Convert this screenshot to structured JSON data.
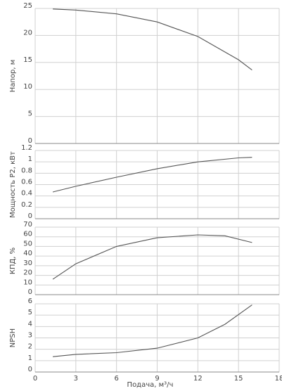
{
  "chart_data": [
    {
      "type": "line",
      "ylabel": "Напор, м",
      "x": [
        1.3,
        3,
        6,
        9,
        12,
        15,
        16
      ],
      "series": [
        {
          "color": "#555555",
          "values": [
            24.9,
            24.7,
            24.0,
            22.5,
            19.8,
            15.5,
            13.6
          ]
        }
      ],
      "xlim": [
        0,
        18
      ],
      "xticks": [
        0,
        3,
        6,
        9,
        12,
        15,
        18
      ],
      "ylim": [
        0,
        25
      ],
      "yticks": [
        0,
        5,
        10,
        15,
        20,
        25
      ],
      "grid": true
    },
    {
      "type": "line",
      "ylabel": "Мощность Р2, кВт",
      "x": [
        1.3,
        3,
        6,
        9,
        12,
        15,
        16
      ],
      "series": [
        {
          "color": "#555555",
          "values": [
            0.47,
            0.57,
            0.73,
            0.88,
            1.0,
            1.07,
            1.08
          ]
        }
      ],
      "xlim": [
        0,
        18
      ],
      "xticks": [
        0,
        3,
        6,
        9,
        12,
        15,
        18
      ],
      "ylim": [
        0,
        1.2
      ],
      "yticks": [
        0,
        0.2,
        0.4,
        0.6,
        0.8,
        1,
        1.2
      ],
      "grid": true
    },
    {
      "type": "line",
      "ylabel": "КПД, %",
      "x": [
        1.3,
        3,
        6,
        9,
        12,
        14,
        16
      ],
      "series": [
        {
          "color": "#555555",
          "values": [
            16,
            32,
            50,
            59,
            62,
            61,
            54
          ]
        }
      ],
      "xlim": [
        0,
        18
      ],
      "xticks": [
        0,
        3,
        6,
        9,
        12,
        15,
        18
      ],
      "ylim": [
        0,
        70
      ],
      "yticks": [
        0,
        10,
        20,
        30,
        40,
        50,
        60,
        70
      ],
      "grid": true
    },
    {
      "type": "line",
      "ylabel": "NPSH",
      "xlabel": "Подача, м³/ч",
      "x": [
        1.3,
        3,
        6,
        9,
        12,
        14,
        16
      ],
      "series": [
        {
          "color": "#555555",
          "values": [
            1.35,
            1.55,
            1.7,
            2.1,
            3.0,
            4.2,
            5.9
          ]
        }
      ],
      "xlim": [
        0,
        18
      ],
      "xticks": [
        0,
        3,
        6,
        9,
        12,
        15,
        18
      ],
      "ylim": [
        0,
        6
      ],
      "yticks": [
        0,
        1,
        2,
        3,
        4,
        5,
        6
      ],
      "grid": true
    }
  ]
}
